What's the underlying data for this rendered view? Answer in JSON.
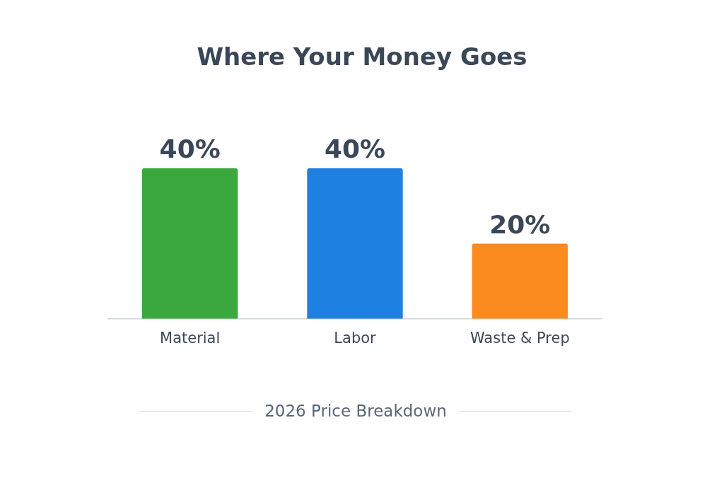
{
  "chart_data": {
    "type": "bar",
    "title": "Where Your Money Goes",
    "categories": [
      "Material",
      "Labor",
      "Waste & Prep"
    ],
    "values": [
      40,
      40,
      20
    ],
    "colors": [
      "#3aa83c",
      "#1e80e0",
      "#fb8a1f"
    ],
    "value_labels": [
      "40%",
      "40%",
      "20%"
    ],
    "annotations": [
      "2026 Price Breakdown"
    ],
    "grid": false,
    "legend": false
  }
}
